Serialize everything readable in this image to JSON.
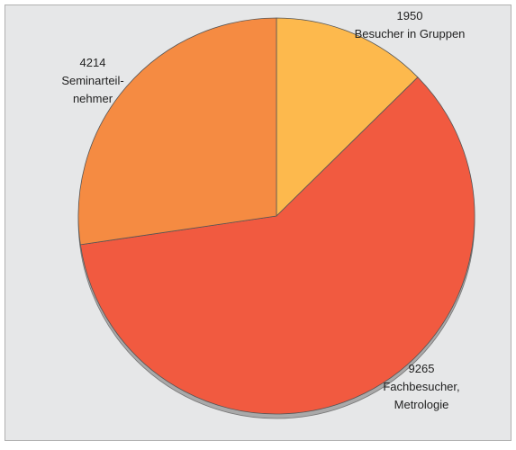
{
  "chart_data": {
    "type": "pie",
    "categories": [
      [
        "Besucher in Gruppen"
      ],
      [
        "Fachbesucher,",
        "Metrologie"
      ],
      [
        "Seminarteil-",
        "nehmer"
      ]
    ],
    "values": [
      1950,
      9265,
      4214
    ],
    "colors": [
      "#fdb94d",
      "#f15a40",
      "#f58b42"
    ]
  }
}
